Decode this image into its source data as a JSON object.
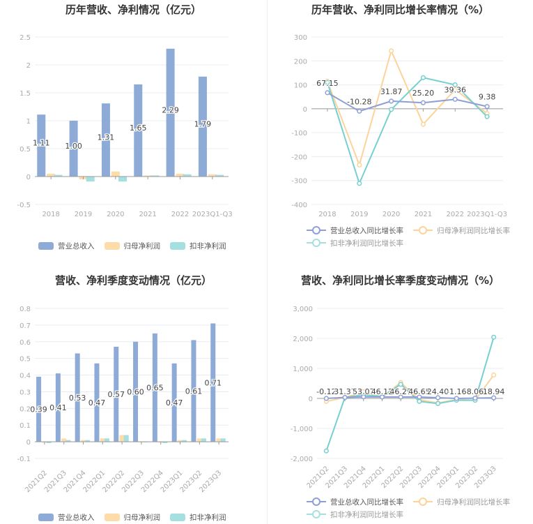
{
  "colors": {
    "revenue": "#8eabd8",
    "net_profit": "#fddcaa",
    "deducted_profit": "#a6dfe0",
    "revenue_line": "#8d9fd6",
    "net_profit_line": "#fcd49a",
    "deducted_profit_line": "#77cfd0",
    "grid": "#e8ecf2",
    "axis": "#999999"
  },
  "chart_data": [
    {
      "id": "annual_amount",
      "type": "bar",
      "title": "历年营收、净利情况（亿元）",
      "categories": [
        "2018",
        "2019",
        "2020",
        "2021",
        "2022",
        "2023Q1-Q3"
      ],
      "series": [
        {
          "name": "营业总收入",
          "values": [
            1.11,
            1.0,
            1.31,
            1.65,
            2.29,
            1.79
          ],
          "labels": [
            "1.11",
            "1.00",
            "1.31",
            "1.65",
            "2.29",
            "1.79"
          ]
        },
        {
          "name": "归母净利润",
          "values": [
            0.05,
            -0.05,
            0.09,
            0.02,
            0.05,
            0.04
          ]
        },
        {
          "name": "扣非净利润",
          "values": [
            0.03,
            -0.09,
            -0.09,
            0.02,
            0.04,
            0.03
          ]
        }
      ],
      "yticks": [
        "2.5",
        "2",
        "1.5",
        "1",
        "0.5",
        "0",
        "-0.5"
      ],
      "ylim": [
        -0.5,
        2.5
      ],
      "grid": true,
      "legend_position": "bottom"
    },
    {
      "id": "annual_growth",
      "type": "line",
      "title": "历年营收、净利同比增长率情况（%）",
      "categories": [
        "2018",
        "2019",
        "2020",
        "2021",
        "2022",
        "2023Q1-Q3"
      ],
      "series": [
        {
          "name": "营业总收入同比增长率",
          "values": [
            67.15,
            -10.28,
            31.87,
            25.2,
            39.36,
            9.38
          ],
          "labels": [
            "67.15",
            "-10.28",
            "31.87",
            "25.20",
            "39.36",
            "9.38"
          ]
        },
        {
          "name": "归母净利润同比增长率",
          "values": [
            115,
            -235,
            242,
            -65,
            80,
            -20
          ]
        },
        {
          "name": "扣非净利润同比增长率",
          "values": [
            110,
            -312,
            -3,
            130,
            100,
            -33
          ]
        }
      ],
      "yticks": [
        "300",
        "200",
        "100",
        "0",
        "-100",
        "-200",
        "-300",
        "-400"
      ],
      "ylim": [
        -400,
        300
      ],
      "grid": true,
      "legend_position": "bottom"
    },
    {
      "id": "quarterly_amount",
      "type": "bar",
      "title": "营收、净利季度变动情况（亿元）",
      "categories": [
        "2021Q2",
        "2021Q3",
        "2021Q4",
        "2022Q1",
        "2022Q2",
        "2022Q3",
        "2022Q4",
        "2023Q1",
        "2023Q2",
        "2023Q3"
      ],
      "series": [
        {
          "name": "营业总收入",
          "values": [
            0.39,
            0.41,
            0.53,
            0.47,
            0.57,
            0.6,
            0.65,
            0.47,
            0.61,
            0.71
          ],
          "labels": [
            "0.39",
            "0.41",
            "0.53",
            "0.47",
            "0.57",
            "0.60",
            "0.65",
            "0.47",
            "0.61",
            "0.71"
          ]
        },
        {
          "name": "归母净利润",
          "values": [
            -0.005,
            0.02,
            0.01,
            0.02,
            0.04,
            0.0,
            -0.005,
            0.01,
            0.02,
            0.02
          ]
        },
        {
          "name": "扣非净利润",
          "values": [
            -0.008,
            0.01,
            0.01,
            0.02,
            0.04,
            0.0,
            -0.008,
            0.01,
            0.02,
            0.02
          ]
        }
      ],
      "yticks": [
        "0.8",
        "0.7",
        "0.6",
        "0.5",
        "0.4",
        "0.3",
        "0.2",
        "0.1",
        "0",
        "-0.1"
      ],
      "ylim": [
        -0.1,
        0.8
      ],
      "grid": true,
      "legend_position": "bottom"
    },
    {
      "id": "quarterly_growth",
      "type": "line",
      "title": "营收、净利同比增长率季度变动情况（%）",
      "categories": [
        "2021Q2",
        "2021Q3",
        "2021Q4",
        "2022Q1",
        "2022Q2",
        "2022Q3",
        "2022Q4",
        "2023Q1",
        "2023Q2",
        "2023Q3"
      ],
      "series": [
        {
          "name": "营业总收入同比增长率",
          "values": [
            -0.12,
            31.37,
            53.07,
            46.12,
            46.27,
            46.65,
            24.4,
            -1.16,
            8.06,
            18.94
          ],
          "labels": [
            "-0.12",
            "31.37",
            "53.07",
            "46.12",
            "46.27",
            "46.65",
            "24.40",
            "-1.16",
            "8.06",
            "18.94"
          ]
        },
        {
          "name": "归母净利润同比增长率",
          "values": [
            -100,
            30,
            220,
            50,
            530,
            -50,
            -150,
            -40,
            -60,
            780
          ]
        },
        {
          "name": "扣非净利润同比增长率",
          "values": [
            -1750,
            30,
            120,
            60,
            470,
            -100,
            -170,
            -60,
            -60,
            2040
          ]
        }
      ],
      "yticks": [
        "3,000",
        "2,000",
        "1,000",
        "0",
        "-1,000",
        "-2,000"
      ],
      "ylim": [
        -2000,
        3000
      ],
      "grid": true,
      "legend_position": "bottom"
    }
  ],
  "legends": {
    "amount": [
      "营业总收入",
      "归母净利润",
      "扣非净利润"
    ],
    "growth": [
      "营业总收入同比增长率",
      "归母净利润同比增长率",
      "扣非净利润同比增长率"
    ]
  }
}
